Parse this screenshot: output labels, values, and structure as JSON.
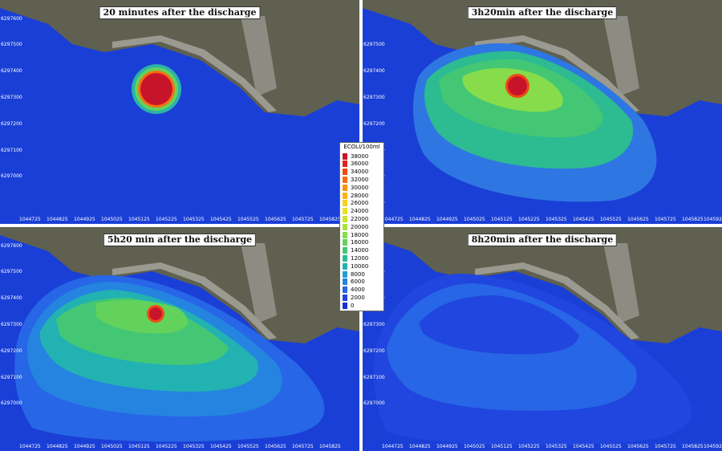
{
  "panels": [
    {
      "title": "20 minutes after the discharge",
      "show_yticks": true
    },
    {
      "title": "3h20min after the discharge",
      "show_yticks": true
    },
    {
      "title": "5h20 min after the discharge",
      "show_yticks": true
    },
    {
      "title": "8h20min after the discharge",
      "show_yticks": true
    }
  ],
  "axes": {
    "x_ticks": [
      "1044725",
      "1044825",
      "1044925",
      "1045025",
      "1045125",
      "1045225",
      "1045325",
      "1045425",
      "1045525",
      "1045625",
      "1045725",
      "1045825",
      "1045925"
    ],
    "y_ticks": [
      "6297600",
      "6297500",
      "6297400",
      "6297300",
      "6297200",
      "6297100",
      "6297000"
    ]
  },
  "legend": {
    "title": "ECOLI/100ml",
    "labels": [
      "38000",
      "36000",
      "34000",
      "32000",
      "30000",
      "28000",
      "26000",
      "24000",
      "22000",
      "20000",
      "18000",
      "16000",
      "14000",
      "12000",
      "10000",
      "8000",
      "6000",
      "4000",
      "2000",
      "0"
    ],
    "colors": [
      "#c8142a",
      "#e0201e",
      "#f04a14",
      "#f66e10",
      "#fb9012",
      "#fcb216",
      "#f8d11b",
      "#e6e220",
      "#c9e52a",
      "#a9e338",
      "#86dc4a",
      "#63d25c",
      "#44c774",
      "#2dbb91",
      "#23b2b2",
      "#1f9fd0",
      "#2484e0",
      "#2766e6",
      "#2046df",
      "#1a2fd4"
    ]
  },
  "colors": {
    "sea": "#1a3fd6",
    "land": "#6b6a55",
    "harbor": "#8d8c82",
    "plume_core": "#c8142a"
  }
}
